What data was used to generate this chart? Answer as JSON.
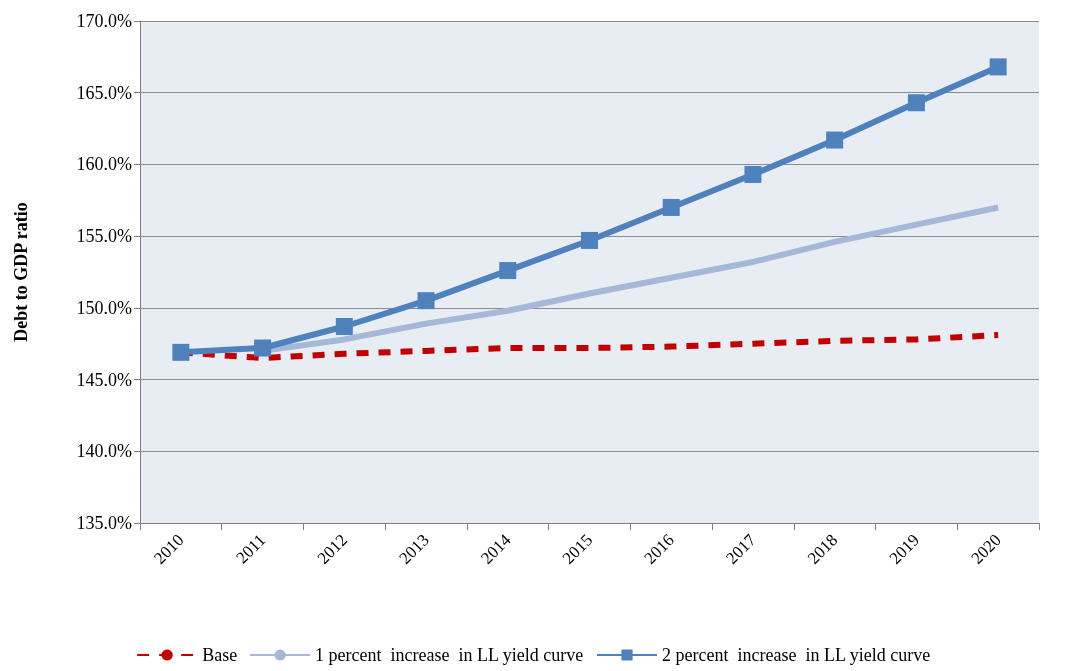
{
  "chart_data": {
    "type": "line",
    "ylabel": "Debt to GDP ratio",
    "categories": [
      "2010",
      "2011",
      "2012",
      "2013",
      "2014",
      "2015",
      "2016",
      "2017",
      "2018",
      "2019",
      "2020"
    ],
    "series": [
      {
        "name": "Base",
        "color": "#c00000",
        "line_style": "dashed",
        "marker": "none",
        "values": [
          146.9,
          146.5,
          146.8,
          147.0,
          147.2,
          147.2,
          147.3,
          147.5,
          147.7,
          147.8,
          148.1
        ]
      },
      {
        "name": "1 percent  increase  in LL yield curve",
        "color": "#a5b8d8",
        "line_style": "solid",
        "marker": "none",
        "values": [
          null,
          147.0,
          147.8,
          148.9,
          149.8,
          151.0,
          152.1,
          153.2,
          154.6,
          155.8,
          157.0
        ]
      },
      {
        "name": "2 percent  increase  in LL yield curve",
        "color": "#4f81bd",
        "line_style": "solid",
        "marker": "square",
        "values": [
          146.9,
          147.2,
          148.7,
          150.5,
          152.6,
          154.7,
          157.0,
          159.3,
          161.7,
          164.3,
          166.8
        ]
      }
    ],
    "ylim": [
      135,
      170
    ],
    "yticks": [
      {
        "value": 135,
        "label": "135.0%"
      },
      {
        "value": 140,
        "label": "140.0%"
      },
      {
        "value": 145,
        "label": "145.0%"
      },
      {
        "value": 150,
        "label": "150.0%"
      },
      {
        "value": 155,
        "label": "155.0%"
      },
      {
        "value": 160,
        "label": "160.0%"
      },
      {
        "value": 165,
        "label": "165.0%"
      },
      {
        "value": 170,
        "label": "170.0%"
      }
    ],
    "grid": "y",
    "legend": "bottom"
  }
}
